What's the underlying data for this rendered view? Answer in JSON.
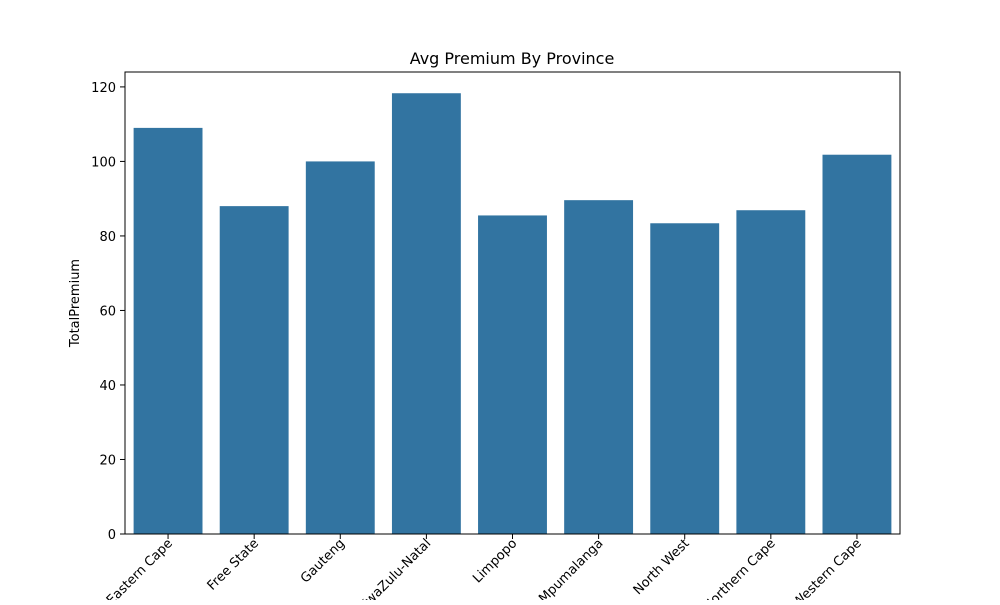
{
  "chart_data": {
    "type": "bar",
    "title": "Avg Premium By Province",
    "xlabel": "",
    "ylabel": "TotalPremium",
    "categories": [
      "Eastern Cape",
      "Free State",
      "Gauteng",
      "KwaZulu-Natal",
      "Limpopo",
      "Mpumalanga",
      "North West",
      "Northern Cape",
      "Western Cape"
    ],
    "values": [
      109.0,
      88.0,
      100.0,
      118.3,
      85.5,
      89.6,
      83.4,
      86.9,
      101.8
    ],
    "ylim": [
      0,
      124
    ],
    "yticks": [
      0,
      20,
      40,
      60,
      80,
      100,
      120
    ],
    "grid": false,
    "bar_color": "#3274a1"
  }
}
